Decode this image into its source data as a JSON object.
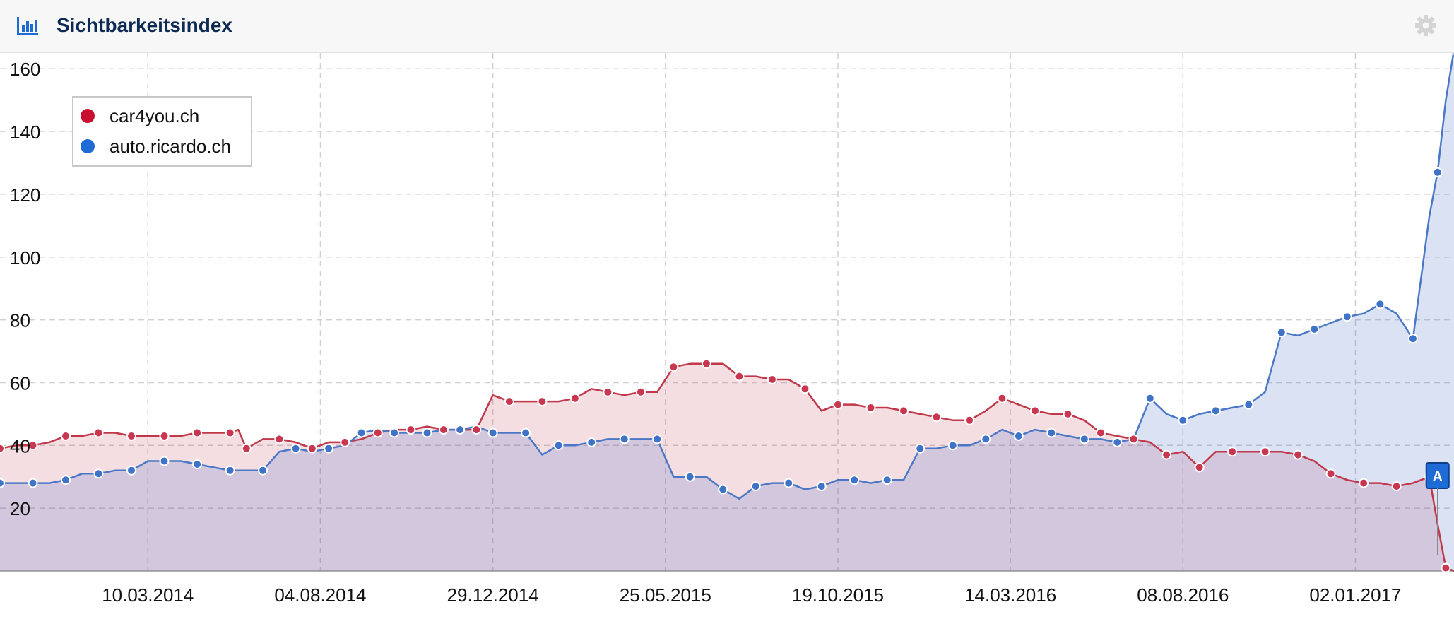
{
  "header": {
    "title": "Sichtbarkeitsindex",
    "chart_icon": "bar-chart-icon",
    "settings_icon": "gear-icon"
  },
  "colors": {
    "car4you": "#c8102e",
    "ricardo": "#1f6bd6",
    "car4you_line": "#c0394b",
    "ricardo_line": "#4a78c7"
  },
  "chart_data": {
    "type": "area",
    "title": "Sichtbarkeitsindex",
    "xlabel": "",
    "ylabel": "",
    "ylim": [
      0,
      165
    ],
    "yticks": [
      20,
      40,
      60,
      80,
      100,
      120,
      140,
      160
    ],
    "xticks": [
      "10.03.2014",
      "04.08.2014",
      "29.12.2014",
      "25.05.2015",
      "19.10.2015",
      "14.03.2016",
      "08.08.2016",
      "02.01.2017"
    ],
    "grid": true,
    "legend_position": "top-left",
    "x_start": "2013-11-04",
    "x_end": "2017-03-27",
    "annotations": [
      {
        "label": "A",
        "date": "2017-03-13"
      }
    ],
    "series": [
      {
        "name": "car4you.ch",
        "color": "#c8102e",
        "points": [
          [
            "2013-11-04",
            39
          ],
          [
            "2013-11-18",
            40
          ],
          [
            "2013-12-02",
            40
          ],
          [
            "2013-12-16",
            41
          ],
          [
            "2013-12-30",
            43
          ],
          [
            "2014-01-13",
            43
          ],
          [
            "2014-01-27",
            44
          ],
          [
            "2014-02-10",
            44
          ],
          [
            "2014-02-24",
            43
          ],
          [
            "2014-03-10",
            43
          ],
          [
            "2014-03-24",
            43
          ],
          [
            "2014-04-07",
            43
          ],
          [
            "2014-04-21",
            44
          ],
          [
            "2014-05-05",
            44
          ],
          [
            "2014-05-19",
            44
          ],
          [
            "2014-05-26",
            45
          ],
          [
            "2014-06-02",
            39
          ],
          [
            "2014-06-16",
            42
          ],
          [
            "2014-06-30",
            42
          ],
          [
            "2014-07-14",
            41
          ],
          [
            "2014-07-28",
            39
          ],
          [
            "2014-08-11",
            41
          ],
          [
            "2014-08-25",
            41
          ],
          [
            "2014-09-08",
            42
          ],
          [
            "2014-09-22",
            44
          ],
          [
            "2014-10-06",
            45
          ],
          [
            "2014-10-20",
            45
          ],
          [
            "2014-11-03",
            46
          ],
          [
            "2014-11-17",
            45
          ],
          [
            "2014-12-01",
            45
          ],
          [
            "2014-12-15",
            45
          ],
          [
            "2014-12-29",
            56
          ],
          [
            "2015-01-12",
            54
          ],
          [
            "2015-01-26",
            54
          ],
          [
            "2015-02-09",
            54
          ],
          [
            "2015-02-23",
            54
          ],
          [
            "2015-03-09",
            55
          ],
          [
            "2015-03-23",
            58
          ],
          [
            "2015-04-06",
            57
          ],
          [
            "2015-04-20",
            56
          ],
          [
            "2015-05-04",
            57
          ],
          [
            "2015-05-18",
            57
          ],
          [
            "2015-06-01",
            65
          ],
          [
            "2015-06-15",
            66
          ],
          [
            "2015-06-29",
            66
          ],
          [
            "2015-07-13",
            66
          ],
          [
            "2015-07-27",
            62
          ],
          [
            "2015-08-10",
            62
          ],
          [
            "2015-08-24",
            61
          ],
          [
            "2015-09-07",
            61
          ],
          [
            "2015-09-21",
            58
          ],
          [
            "2015-10-05",
            51
          ],
          [
            "2015-10-19",
            53
          ],
          [
            "2015-11-02",
            53
          ],
          [
            "2015-11-16",
            52
          ],
          [
            "2015-11-30",
            52
          ],
          [
            "2015-12-14",
            51
          ],
          [
            "2015-12-28",
            50
          ],
          [
            "2016-01-11",
            49
          ],
          [
            "2016-01-25",
            48
          ],
          [
            "2016-02-08",
            48
          ],
          [
            "2016-02-22",
            51
          ],
          [
            "2016-03-07",
            55
          ],
          [
            "2016-03-21",
            53
          ],
          [
            "2016-04-04",
            51
          ],
          [
            "2016-04-18",
            50
          ],
          [
            "2016-05-02",
            50
          ],
          [
            "2016-05-16",
            48
          ],
          [
            "2016-05-30",
            44
          ],
          [
            "2016-06-13",
            43
          ],
          [
            "2016-06-27",
            42
          ],
          [
            "2016-07-11",
            41
          ],
          [
            "2016-07-25",
            37
          ],
          [
            "2016-08-08",
            38
          ],
          [
            "2016-08-22",
            33
          ],
          [
            "2016-09-05",
            38
          ],
          [
            "2016-09-19",
            38
          ],
          [
            "2016-10-03",
            38
          ],
          [
            "2016-10-17",
            38
          ],
          [
            "2016-10-31",
            38
          ],
          [
            "2016-11-14",
            37
          ],
          [
            "2016-11-28",
            35
          ],
          [
            "2016-12-12",
            31
          ],
          [
            "2016-12-26",
            29
          ],
          [
            "2017-01-09",
            28
          ],
          [
            "2017-01-23",
            28
          ],
          [
            "2017-02-06",
            27
          ],
          [
            "2017-02-20",
            28
          ],
          [
            "2017-03-06",
            30
          ],
          [
            "2017-03-13",
            15
          ],
          [
            "2017-03-20",
            1
          ],
          [
            "2017-03-27",
            0
          ]
        ]
      },
      {
        "name": "auto.ricardo.ch",
        "color": "#1f6bd6",
        "points": [
          [
            "2013-11-04",
            28
          ],
          [
            "2013-11-18",
            28
          ],
          [
            "2013-12-02",
            28
          ],
          [
            "2013-12-16",
            28
          ],
          [
            "2013-12-30",
            29
          ],
          [
            "2014-01-13",
            31
          ],
          [
            "2014-01-27",
            31
          ],
          [
            "2014-02-10",
            32
          ],
          [
            "2014-02-24",
            32
          ],
          [
            "2014-03-10",
            35
          ],
          [
            "2014-03-24",
            35
          ],
          [
            "2014-04-07",
            35
          ],
          [
            "2014-04-21",
            34
          ],
          [
            "2014-05-05",
            33
          ],
          [
            "2014-05-19",
            32
          ],
          [
            "2014-06-02",
            32
          ],
          [
            "2014-06-16",
            32
          ],
          [
            "2014-06-30",
            38
          ],
          [
            "2014-07-14",
            39
          ],
          [
            "2014-07-28",
            38
          ],
          [
            "2014-08-11",
            39
          ],
          [
            "2014-08-25",
            40
          ],
          [
            "2014-09-08",
            44
          ],
          [
            "2014-09-22",
            45
          ],
          [
            "2014-10-06",
            44
          ],
          [
            "2014-10-20",
            44
          ],
          [
            "2014-11-03",
            44
          ],
          [
            "2014-11-17",
            45
          ],
          [
            "2014-12-01",
            45
          ],
          [
            "2014-12-15",
            46
          ],
          [
            "2014-12-29",
            44
          ],
          [
            "2015-01-12",
            44
          ],
          [
            "2015-01-26",
            44
          ],
          [
            "2015-02-09",
            37
          ],
          [
            "2015-02-23",
            40
          ],
          [
            "2015-03-09",
            40
          ],
          [
            "2015-03-23",
            41
          ],
          [
            "2015-04-06",
            42
          ],
          [
            "2015-04-20",
            42
          ],
          [
            "2015-05-04",
            42
          ],
          [
            "2015-05-18",
            42
          ],
          [
            "2015-06-01",
            30
          ],
          [
            "2015-06-15",
            30
          ],
          [
            "2015-06-29",
            30
          ],
          [
            "2015-07-13",
            26
          ],
          [
            "2015-07-27",
            23
          ],
          [
            "2015-08-10",
            27
          ],
          [
            "2015-08-24",
            28
          ],
          [
            "2015-09-07",
            28
          ],
          [
            "2015-09-21",
            26
          ],
          [
            "2015-10-05",
            27
          ],
          [
            "2015-10-19",
            29
          ],
          [
            "2015-11-02",
            29
          ],
          [
            "2015-11-16",
            28
          ],
          [
            "2015-11-30",
            29
          ],
          [
            "2015-12-14",
            29
          ],
          [
            "2015-12-28",
            39
          ],
          [
            "2016-01-11",
            39
          ],
          [
            "2016-01-25",
            40
          ],
          [
            "2016-02-08",
            40
          ],
          [
            "2016-02-22",
            42
          ],
          [
            "2016-03-07",
            45
          ],
          [
            "2016-03-21",
            43
          ],
          [
            "2016-04-04",
            45
          ],
          [
            "2016-04-18",
            44
          ],
          [
            "2016-05-02",
            43
          ],
          [
            "2016-05-16",
            42
          ],
          [
            "2016-05-30",
            42
          ],
          [
            "2016-06-13",
            41
          ],
          [
            "2016-06-27",
            42
          ],
          [
            "2016-07-11",
            55
          ],
          [
            "2016-07-25",
            50
          ],
          [
            "2016-08-08",
            48
          ],
          [
            "2016-08-22",
            50
          ],
          [
            "2016-09-05",
            51
          ],
          [
            "2016-09-19",
            52
          ],
          [
            "2016-10-03",
            53
          ],
          [
            "2016-10-17",
            57
          ],
          [
            "2016-10-31",
            76
          ],
          [
            "2016-11-14",
            75
          ],
          [
            "2016-11-28",
            77
          ],
          [
            "2016-12-12",
            79
          ],
          [
            "2016-12-26",
            81
          ],
          [
            "2017-01-09",
            82
          ],
          [
            "2017-01-23",
            85
          ],
          [
            "2017-02-06",
            82
          ],
          [
            "2017-02-20",
            74
          ],
          [
            "2017-03-06",
            113
          ],
          [
            "2017-03-13",
            127
          ],
          [
            "2017-03-20",
            150
          ],
          [
            "2017-03-27",
            166
          ]
        ]
      }
    ]
  }
}
